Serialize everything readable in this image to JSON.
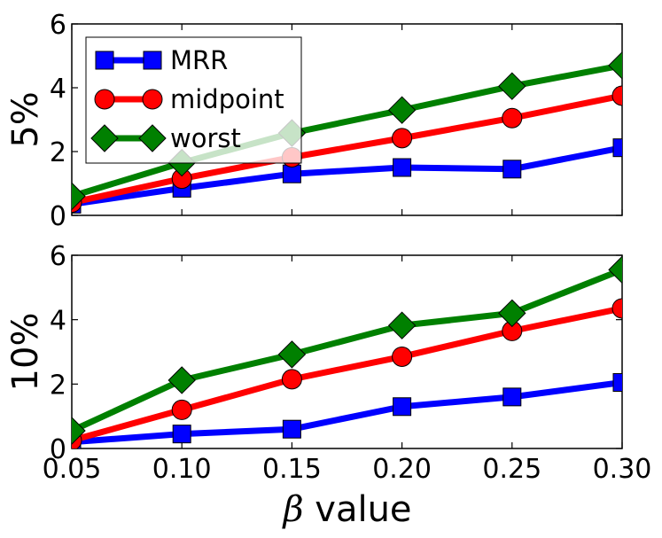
{
  "chart_data": [
    {
      "type": "line",
      "panel": "top",
      "ylabel": "5%",
      "x": [
        0.05,
        0.1,
        0.15,
        0.2,
        0.25,
        0.3
      ],
      "xlim": [
        0.05,
        0.3
      ],
      "ylim": [
        0,
        6
      ],
      "yticks": [
        0,
        2,
        4,
        6
      ],
      "ytick_labels": [
        "0",
        "2",
        "4",
        "6"
      ],
      "legend": {
        "position": "upper-left",
        "entries": [
          "MRR",
          "midpoint",
          "worst"
        ]
      },
      "series": [
        {
          "name": "MRR",
          "color": "#0000ff",
          "marker": "square",
          "values": [
            0.35,
            0.85,
            1.3,
            1.5,
            1.45,
            2.12
          ]
        },
        {
          "name": "midpoint",
          "color": "#ff0000",
          "marker": "circle",
          "values": [
            0.4,
            1.15,
            1.82,
            2.42,
            3.05,
            3.75
          ]
        },
        {
          "name": "worst",
          "color": "#008000",
          "marker": "diamond",
          "values": [
            0.6,
            1.65,
            2.58,
            3.3,
            4.05,
            4.7
          ]
        }
      ]
    },
    {
      "type": "line",
      "panel": "bottom",
      "ylabel": "10%",
      "xlabel_symbol": "β",
      "xlabel_text": " value",
      "x": [
        0.05,
        0.1,
        0.15,
        0.2,
        0.25,
        0.3
      ],
      "xtick_labels": [
        "0.05",
        "0.10",
        "0.15",
        "0.20",
        "0.25",
        "0.30"
      ],
      "xlim": [
        0.05,
        0.3
      ],
      "ylim": [
        0,
        6
      ],
      "yticks": [
        0,
        2,
        4,
        6
      ],
      "ytick_labels": [
        "0",
        "2",
        "4",
        "6"
      ],
      "series": [
        {
          "name": "MRR",
          "color": "#0000ff",
          "marker": "square",
          "values": [
            0.2,
            0.45,
            0.6,
            1.3,
            1.6,
            2.05
          ]
        },
        {
          "name": "midpoint",
          "color": "#ff0000",
          "marker": "circle",
          "values": [
            0.25,
            1.2,
            2.15,
            2.85,
            3.65,
            4.35
          ]
        },
        {
          "name": "worst",
          "color": "#008000",
          "marker": "diamond",
          "values": [
            0.55,
            2.12,
            2.92,
            3.82,
            4.2,
            5.55
          ]
        }
      ]
    }
  ]
}
